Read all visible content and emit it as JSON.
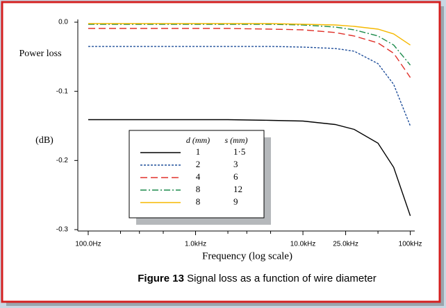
{
  "chart_data": {
    "type": "line",
    "ylabel": [
      "Power loss",
      "(dB)"
    ],
    "xlabel": "Frequency (log scale)",
    "caption": {
      "label": "Figure 13",
      "text": "Signal loss as a function of wire diameter"
    },
    "xscale": "log",
    "x": [
      100,
      200,
      500,
      1000,
      2000,
      5000,
      10000,
      20000,
      30000,
      50000,
      70000,
      100000
    ],
    "xlim": [
      80,
      110000
    ],
    "xticks": [
      {
        "value": 100,
        "label": "100.0Hz"
      },
      {
        "value": 1000,
        "label": "1.0kHz"
      },
      {
        "value": 10000,
        "label": "10.0kHz"
      },
      {
        "value": 25000,
        "label": "25.0kHz"
      },
      {
        "value": 100000,
        "label": "100kHz"
      }
    ],
    "xminorticks": [
      200,
      300,
      500,
      2000,
      3000,
      5000,
      50000
    ],
    "ylim": [
      -0.302,
      0.004
    ],
    "yticks": [
      {
        "value": 0,
        "label": "0.0"
      },
      -0.1,
      -0.2,
      -0.3
    ],
    "legend_headers": [
      "d (mm)",
      "s (mm)"
    ],
    "series": [
      {
        "d": "1",
        "s": "1·5",
        "color": "#000000",
        "dash": "none",
        "values": [
          -0.141,
          -0.141,
          -0.141,
          -0.141,
          -0.141,
          -0.142,
          -0.143,
          -0.148,
          -0.155,
          -0.175,
          -0.21,
          -0.28
        ]
      },
      {
        "d": "2",
        "s": "3",
        "color": "#1f4e9a",
        "dash": "3 2",
        "values": [
          -0.035,
          -0.035,
          -0.035,
          -0.035,
          -0.035,
          -0.035,
          -0.036,
          -0.038,
          -0.042,
          -0.06,
          -0.09,
          -0.15
        ]
      },
      {
        "d": "4",
        "s": "6",
        "color": "#e0312a",
        "dash": "10 5",
        "values": [
          -0.009,
          -0.009,
          -0.009,
          -0.009,
          -0.009,
          -0.01,
          -0.011,
          -0.015,
          -0.02,
          -0.03,
          -0.045,
          -0.08
        ]
      },
      {
        "d": "8",
        "s": "12",
        "color": "#1a8a4a",
        "dash": "9 3 2 3",
        "values": [
          -0.003,
          -0.003,
          -0.003,
          -0.003,
          -0.003,
          -0.003,
          -0.004,
          -0.007,
          -0.011,
          -0.02,
          -0.033,
          -0.062
        ]
      },
      {
        "d": "8",
        "s": "9",
        "color": "#f5b800",
        "dash": "none",
        "values": [
          -0.002,
          -0.002,
          -0.002,
          -0.002,
          -0.002,
          -0.002,
          -0.003,
          -0.004,
          -0.006,
          -0.01,
          -0.017,
          -0.033
        ]
      }
    ]
  }
}
